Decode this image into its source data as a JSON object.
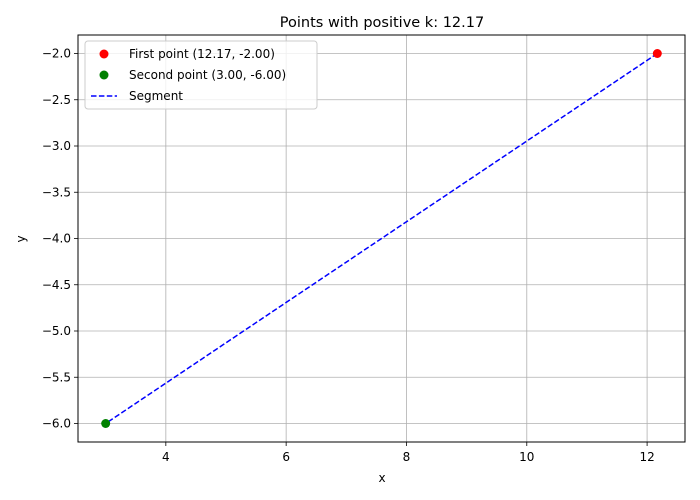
{
  "chart_data": {
    "type": "scatter",
    "title": "Points with positive k: 12.17",
    "xlabel": "x",
    "ylabel": "y",
    "xlim": [
      2.54,
      12.63
    ],
    "ylim": [
      -6.2,
      -1.8
    ],
    "grid": true,
    "legend_placement": "top-left",
    "x_ticks": [
      4,
      6,
      8,
      10,
      12
    ],
    "y_ticks": [
      -6.0,
      -5.5,
      -5.0,
      -4.5,
      -4.0,
      -3.5,
      -3.0,
      -2.5,
      -2.0
    ],
    "x_tick_labels": [
      "4",
      "6",
      "8",
      "10",
      "12"
    ],
    "y_tick_labels": [
      "−6.0",
      "−5.5",
      "−5.0",
      "−4.5",
      "−4.0",
      "−3.5",
      "−3.0",
      "−2.5",
      "−2.0"
    ],
    "points": [
      {
        "name": "First point (12.17, -2.00)",
        "x": 12.17,
        "y": -2.0,
        "color": "#ff0000"
      },
      {
        "name": "Second point (3.00, -6.00)",
        "x": 3.0,
        "y": -6.0,
        "color": "#008000"
      }
    ],
    "segment": {
      "name": "Segment",
      "x": [
        12.17,
        3.0
      ],
      "y": [
        -2.0,
        -6.0
      ],
      "color": "#0000ff",
      "style": "dashed"
    }
  }
}
